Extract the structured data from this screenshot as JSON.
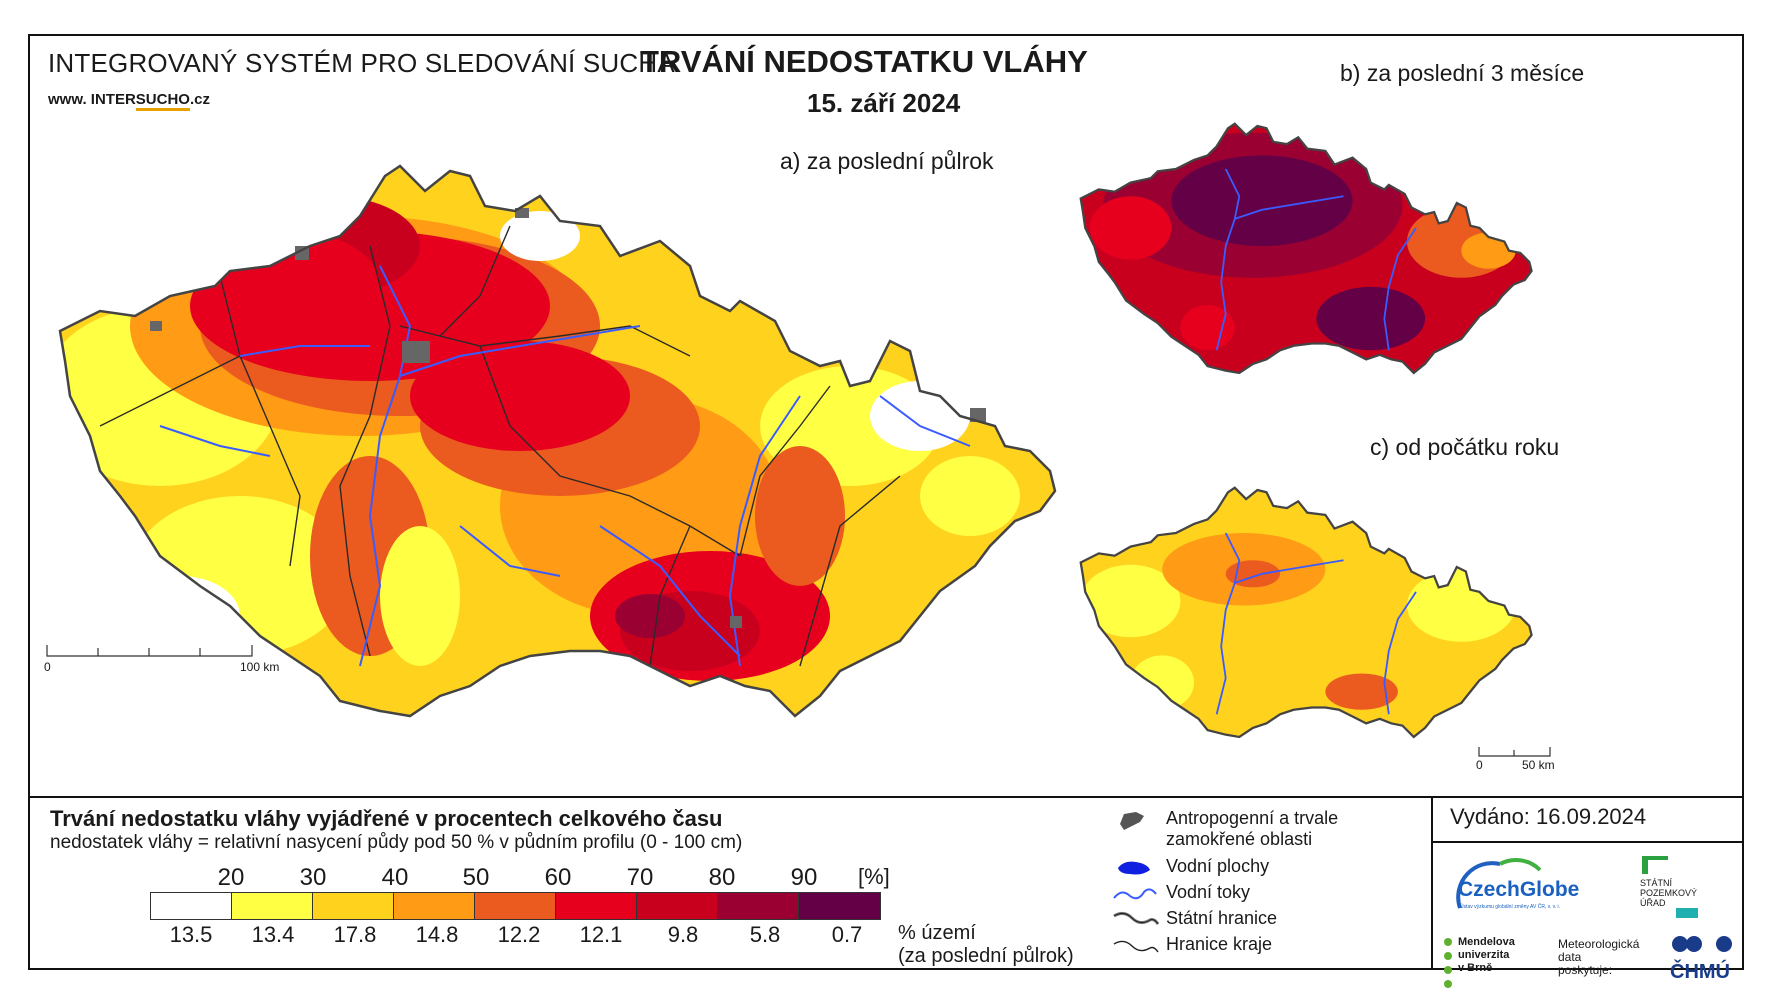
{
  "header": {
    "system_title": "INTEGROVANÝ SYSTÉM PRO SLEDOVÁNÍ SUCHA",
    "website_prefix": "www. INTER",
    "website_brand": "SUCHO",
    "website_suffix": ".cz",
    "main_title": "TRVÁNÍ NEDOSTATKU VLÁHY",
    "date": "15. září 2024"
  },
  "maps": {
    "a_label": "a) za poslední půlrok",
    "b_label": "b) za poslední 3 měsíce",
    "c_label": "c) od počátku roku",
    "a_scale_start": "0",
    "a_scale_end": "100 km",
    "small_scale_start": "0",
    "small_scale_end": "50 km"
  },
  "legend": {
    "title": "Trvání nedostatku vláhy vyjádřené v procentech celkového času",
    "subtitle": "nedostatek vláhy = relativní nasycení půdy pod 50 % v půdním profilu (0 - 100 cm)",
    "unit": "[%]",
    "class_breaks": [
      "20",
      "30",
      "40",
      "50",
      "60",
      "70",
      "80",
      "90"
    ],
    "colors": [
      "#ffffff",
      "#ffff44",
      "#ffd21e",
      "#ff9b14",
      "#eb5a1e",
      "#e6001e",
      "#c8001e",
      "#9b0032",
      "#640046"
    ],
    "area_percents": [
      "13.5",
      "13.4",
      "17.8",
      "14.8",
      "12.2",
      "12.1",
      "9.8",
      "5.8",
      "0.7"
    ],
    "area_label_1": "% území",
    "area_label_2": "(za poslední půlrok)"
  },
  "symbols": {
    "anthropogenic_1": "Antropogenní a trvale",
    "anthropogenic_2": "zamokřené oblasti",
    "water_bodies": "Vodní plochy",
    "water_streams": "Vodní toky",
    "state_border": "Státní hranice",
    "region_border": "Hranice kraje"
  },
  "footer": {
    "issued": "Vydáno: 16.09.2024",
    "czechglobe": "CzechGlobe",
    "czechglobe_sub": "Ústav výzkumu globální změny AV ČR, v. v. i.",
    "spu_1": "STÁTNÍ",
    "spu_2": "POZEMKOVÝ",
    "spu_3": "ÚŘAD",
    "mendel_1": "Mendelova",
    "mendel_2": "univerzita",
    "mendel_3": "v Brně",
    "met_1": "Meteorologická",
    "met_2": "data",
    "met_3": "poskytuje:",
    "chmu": "ČHMÚ"
  }
}
